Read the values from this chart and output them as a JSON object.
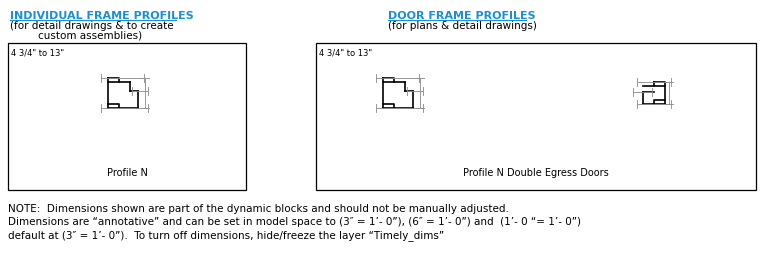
{
  "title_left": "INDIVIDUAL FRAME PROFILES",
  "subtitle_left_1": "(for detail drawings & to create",
  "subtitle_left_2": "custom assemblies)",
  "title_right": "DOOR FRAME PROFILES",
  "subtitle_right": "(for plans & detail drawings)",
  "title_color": "#1a8fd1",
  "subtitle_color": "#000000",
  "box1_label": "4 3/4\" to 13\"",
  "box2_label": "4 3/4\" to 13\"",
  "profile_n_label": "Profile N",
  "profile_n_double_label": "Profile N Double Egress Doors",
  "note_line1": "NOTE:  Dimensions shown are part of the dynamic blocks and should not be manually adjusted.",
  "note_line2": "Dimensions are “annotative” and can be set in model space to (3″ = 1’- 0”), (6″ = 1’- 0”) and  (1’- 0 “= 1’- 0”)",
  "note_line3": "default at (3″ = 1’- 0”).  To turn off dimensions, hide/freeze the layer “Timely_dims”",
  "bg_color": "#ffffff",
  "box_edge_color": "#000000",
  "profile_color": "#000000",
  "dim_color": "#909090",
  "figw": 7.61,
  "figh": 2.76,
  "dpi": 100
}
